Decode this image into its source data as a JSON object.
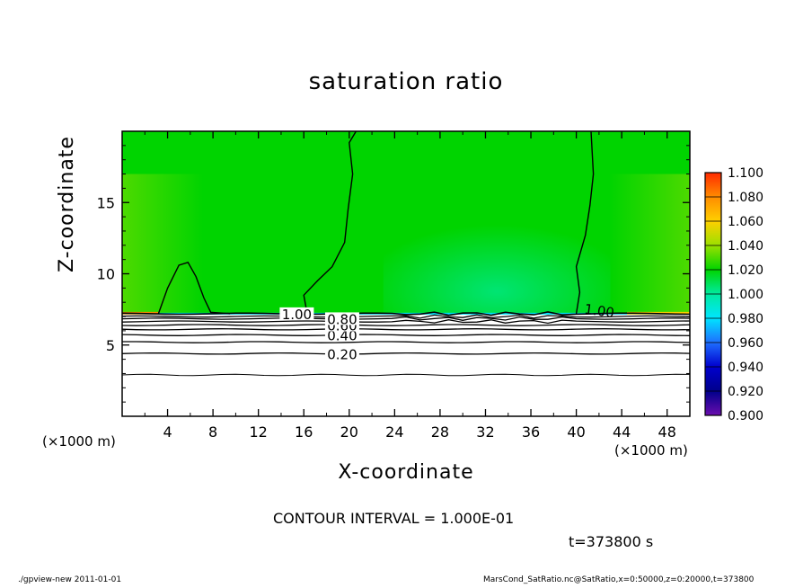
{
  "chart_data": {
    "type": "heatmap",
    "title": "saturation ratio",
    "xlabel": "X-coordinate",
    "ylabel": "Z-coordinate",
    "x_unit_left": "(×1000 m)",
    "x_unit_right": "(×1000 m)",
    "xlim": [
      0,
      50
    ],
    "ylim": [
      0,
      20
    ],
    "x_ticks": [
      4,
      8,
      12,
      16,
      20,
      24,
      28,
      32,
      36,
      40,
      44,
      48
    ],
    "x_tick_labels": [
      "4",
      "8",
      "12",
      "16",
      "20",
      "24",
      "28",
      "32",
      "36",
      "40",
      "44",
      "48"
    ],
    "y_ticks": [
      5,
      10,
      15
    ],
    "y_tick_labels": [
      "5",
      "10",
      "15"
    ],
    "colorbar": {
      "levels": [
        0.9,
        0.92,
        0.94,
        0.96,
        0.98,
        1.0,
        1.02,
        1.04,
        1.06,
        1.08,
        1.1
      ],
      "labels": [
        "0.900",
        "0.920",
        "0.940",
        "0.960",
        "0.980",
        "1.000",
        "1.020",
        "1.040",
        "1.060",
        "1.080",
        "1.100"
      ],
      "colors": [
        "#6a0dad",
        "#00008b",
        "#0000cd",
        "#1e6fff",
        "#00e5ff",
        "#00eba0",
        "#00d400",
        "#9be000",
        "#ffd000",
        "#ff8c00",
        "#ff2a00",
        "#ff9090"
      ]
    },
    "contours": [
      {
        "value": 0.2,
        "label": "0.20",
        "z": 4.4
      },
      {
        "value": 0.3,
        "label": "",
        "z": 5.2
      },
      {
        "value": 0.4,
        "label": "0.40",
        "z": 5.7
      },
      {
        "value": 0.5,
        "label": "",
        "z": 6.1
      },
      {
        "value": 0.6,
        "label": "0.60",
        "z": 6.4
      },
      {
        "value": 0.7,
        "label": "",
        "z": 6.65
      },
      {
        "value": 0.8,
        "label": "0.80",
        "z": 6.85
      },
      {
        "value": 0.9,
        "label": "",
        "z": 7.0
      },
      {
        "value": 1.0,
        "label": "1.00",
        "z": 7.2
      }
    ],
    "contour_1_00_label_right": "1.00",
    "low_contour_z": 2.9,
    "contour_interval_text": "CONTOUR INTERVAL = 1.000E-01",
    "time_text": "t=373800 s"
  },
  "footer": {
    "left": "./gpview-new   2011-01-01",
    "right": "MarsCond_SatRatio.nc@SatRatio,x=0:50000,z=0:20000,t=373800"
  }
}
